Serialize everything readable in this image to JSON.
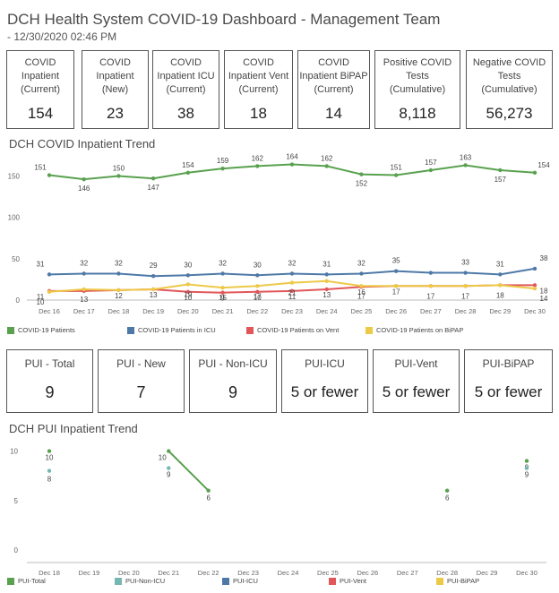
{
  "header": {
    "title": "DCH Health System COVID-19 Dashboard - Management Team",
    "subtitle": " - 12/30/2020 02:46 PM"
  },
  "kpis_top": [
    {
      "label": "COVID\nInpatient\n(Current)",
      "value": "154"
    },
    {
      "label": "COVID\nInpatient\n(New)",
      "value": "23"
    },
    {
      "label": "COVID\nInpatient ICU\n(Current)",
      "value": "38"
    },
    {
      "label": "COVID\nInpatient Vent\n(Current)",
      "value": "18"
    },
    {
      "label": "COVID\nInpatient BiPAP\n(Current)",
      "value": "14"
    },
    {
      "label": "Positive COVID\nTests\n(Cumulative)",
      "value": "8,118"
    },
    {
      "label": "Negative COVID\nTests\n(Cumulative)",
      "value": "56,273"
    }
  ],
  "kpis_pui": [
    {
      "label": "PUI - Total",
      "value": "9"
    },
    {
      "label": "PUI - New",
      "value": "7"
    },
    {
      "label": "PUI - Non-ICU",
      "value": "9"
    },
    {
      "label": "PUI-ICU",
      "value": "5 or fewer"
    },
    {
      "label": "PUI-Vent",
      "value": "5 or fewer"
    },
    {
      "label": "PUI-BiPAP",
      "value": "5 or fewer"
    }
  ],
  "sections": {
    "trend1_title": "DCH COVID Inpatient Trend",
    "trend2_title": "DCH PUI Inpatient Trend"
  },
  "colors": {
    "green": "#59a14f",
    "blue": "#4e79a7",
    "red": "#e15759",
    "yellow": "#edc948",
    "teal": "#76b7b2"
  },
  "chart_data": [
    {
      "type": "line",
      "title": "DCH COVID Inpatient Trend",
      "categories": [
        "Dec 16",
        "Dec 17",
        "Dec 18",
        "Dec 19",
        "Dec 20",
        "Dec 21",
        "Dec 22",
        "Dec 23",
        "Dec 24",
        "Dec 25",
        "Dec 26",
        "Dec 27",
        "Dec 28",
        "Dec 29",
        "Dec 30"
      ],
      "yticks": [
        0,
        50,
        100,
        150
      ],
      "ylim": [
        0,
        170
      ],
      "series": [
        {
          "name": "COVID-19 Patients",
          "color": "#59a14f",
          "values": [
            151,
            146,
            150,
            147,
            154,
            159,
            162,
            164,
            162,
            152,
            151,
            157,
            163,
            157,
            154
          ],
          "labels": [
            "151",
            "146",
            "150",
            "147",
            "154",
            "159",
            "162",
            "164",
            "162",
            "152",
            "151",
            "157",
            "163",
            "157",
            "154"
          ]
        },
        {
          "name": "COVID-19 Patients in ICU",
          "color": "#4e79a7",
          "values": [
            31,
            32,
            32,
            29,
            30,
            32,
            30,
            32,
            31,
            32,
            35,
            33,
            33,
            31,
            38
          ],
          "labels": [
            "31",
            "32",
            "32",
            "29",
            "30",
            "32",
            "30",
            "32",
            "31",
            "32",
            "35",
            "",
            "33",
            "31",
            "38"
          ]
        },
        {
          "name": "COVID-19 Patients on Vent",
          "color": "#e15759",
          "values": [
            11,
            11,
            12,
            13,
            10,
            9,
            10,
            11,
            13,
            16,
            17,
            17,
            17,
            18,
            18
          ],
          "labels": [
            "11",
            "",
            "12",
            "13",
            "10",
            "9",
            "10",
            "11",
            "13",
            "16",
            "17",
            "",
            "",
            "",
            "18"
          ]
        },
        {
          "name": "COVID-19 Patients on BiPAP",
          "color": "#edc948",
          "values": [
            10,
            13,
            12,
            13,
            19,
            15,
            17,
            21,
            23,
            17,
            17,
            17,
            17,
            18,
            14
          ],
          "labels": [
            "10",
            "13",
            "",
            "",
            "19",
            "15",
            "17",
            "21",
            "",
            "17",
            "",
            "17",
            "17",
            "18",
            "14"
          ]
        }
      ],
      "legend_position": "bottom",
      "grid": false
    },
    {
      "type": "line",
      "title": "DCH PUI Inpatient Trend",
      "categories": [
        "Dec 18",
        "Dec 19",
        "Dec 20",
        "Dec 21",
        "Dec 22",
        "Dec 23",
        "Dec 24",
        "Dec 25",
        "Dec 26",
        "Dec 27",
        "Dec 28",
        "Dec 29",
        "Dec 30"
      ],
      "yticks": [
        0,
        5,
        10
      ],
      "ylim": [
        0,
        10.5
      ],
      "series": [
        {
          "name": "PUI-Total",
          "color": "#59a14f",
          "values": [
            10,
            null,
            null,
            10,
            6,
            null,
            null,
            null,
            null,
            null,
            6,
            null,
            9
          ]
        },
        {
          "name": "PUI-Non-ICU",
          "color": "#76b7b2",
          "values": [
            8,
            null,
            null,
            9,
            null,
            null,
            null,
            null,
            null,
            null,
            null,
            null,
            9
          ]
        },
        {
          "name": "PUI-ICU",
          "color": "#4e79a7",
          "values": [
            null,
            null,
            null,
            null,
            null,
            null,
            null,
            null,
            null,
            null,
            null,
            null,
            null
          ]
        },
        {
          "name": "PUI-Vent",
          "color": "#e15759",
          "values": [
            null,
            null,
            null,
            null,
            null,
            null,
            null,
            null,
            null,
            null,
            null,
            null,
            null
          ]
        },
        {
          "name": "PUI-BiPAP",
          "color": "#edc948",
          "values": [
            null,
            null,
            null,
            null,
            null,
            null,
            null,
            null,
            null,
            null,
            null,
            null,
            null
          ]
        }
      ],
      "legend_position": "bottom",
      "grid": false
    }
  ]
}
